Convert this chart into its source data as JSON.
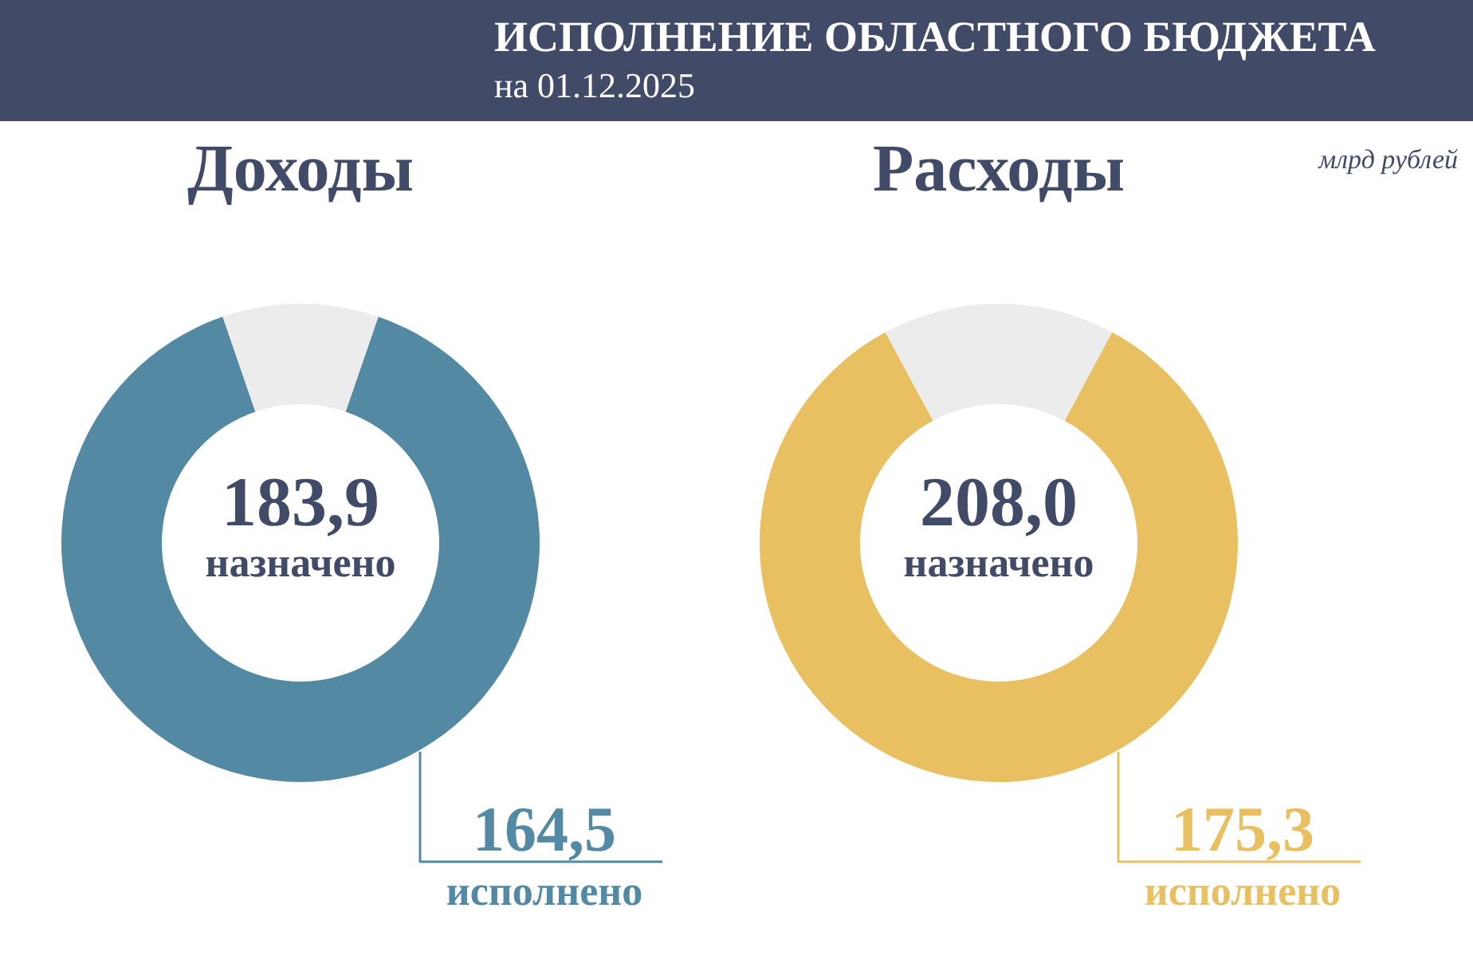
{
  "chart_data": [
    {
      "type": "donut",
      "title": "Доходы",
      "categories": [
        "исполнено",
        null
      ],
      "values": [
        164.5,
        19.4
      ],
      "colors": [
        "#5389a3",
        "#ececec"
      ],
      "value_labels": [
        "164,5",
        null
      ],
      "annotations": [
        "ИСПОЛНЕНИЕ ОБЛАСТНОГО БЮДЖЕТА",
        "на 01.12.2025",
        "183,9",
        "назначено"
      ]
    },
    {
      "type": "donut",
      "title": "Расходы",
      "categories": [
        "исполнено",
        null
      ],
      "values": [
        175.3,
        32.7
      ],
      "colors": [
        "#e8c062",
        "#ececec"
      ],
      "value_labels": [
        "175,3",
        null
      ],
      "annotations": [
        "млрд рублей",
        "208,0",
        "назначено"
      ]
    }
  ]
}
